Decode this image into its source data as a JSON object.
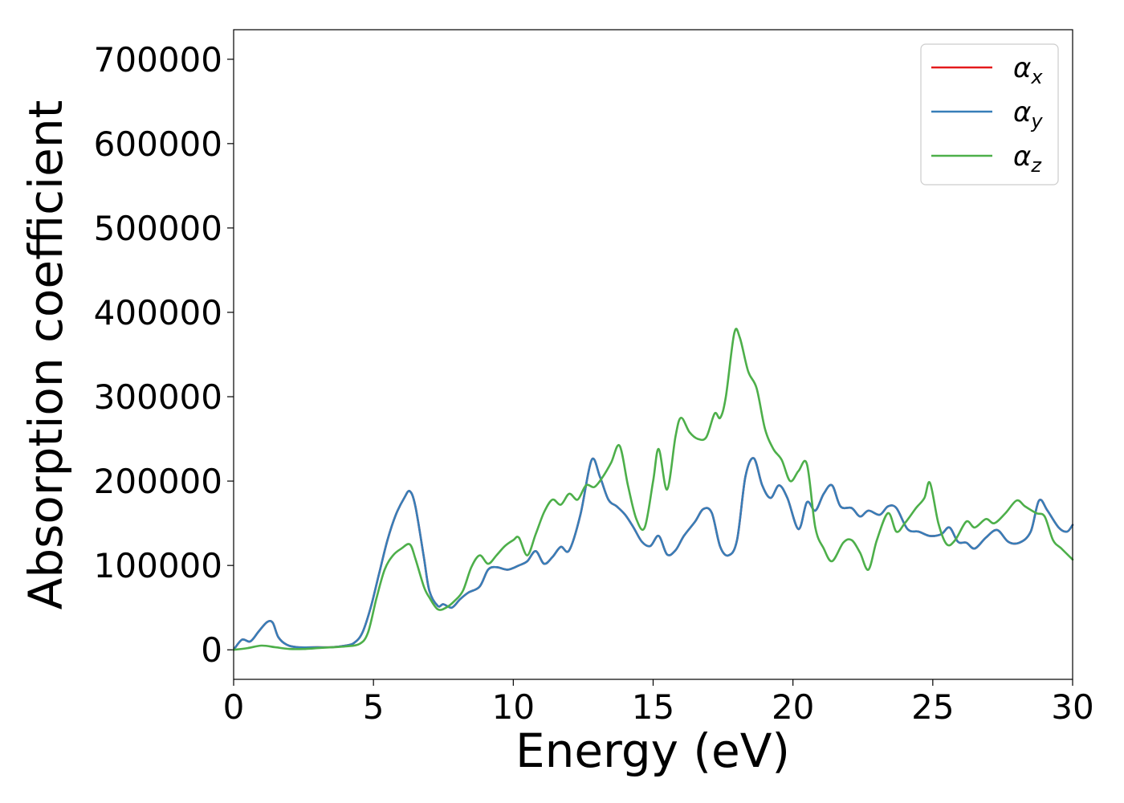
{
  "chart_data": {
    "type": "line",
    "title": "",
    "xlabel": "Energy (eV)",
    "ylabel": "Absorption coefficient",
    "xlim": [
      0,
      30
    ],
    "ylim": [
      -35000,
      735000
    ],
    "xticks": [
      0,
      5,
      10,
      15,
      20,
      25,
      30
    ],
    "yticks": [
      0,
      100000,
      200000,
      300000,
      400000,
      500000,
      600000,
      700000
    ],
    "grid": false,
    "legend_position": "top-right",
    "series": [
      {
        "name": "αx",
        "symbol": "α",
        "subscript": "x",
        "color": "#e41a1c",
        "x": [
          0,
          0.3,
          0.6,
          0.9,
          1.2,
          1.4,
          1.6,
          1.9,
          2.3,
          3,
          3.5,
          4,
          4.3,
          4.6,
          4.9,
          5.2,
          5.5,
          5.8,
          6.1,
          6.3,
          6.5,
          6.8,
          7.0,
          7.3,
          7.5,
          7.8,
          8.1,
          8.4,
          8.8,
          9.1,
          9.4,
          9.8,
          10.2,
          10.5,
          10.8,
          11.1,
          11.4,
          11.7,
          12.0,
          12.4,
          12.8,
          13.1,
          13.4,
          13.7,
          14.0,
          14.3,
          14.6,
          14.9,
          15.2,
          15.5,
          15.8,
          16.1,
          16.5,
          16.8,
          17.1,
          17.4,
          17.7,
          18.0,
          18.3,
          18.6,
          18.9,
          19.2,
          19.5,
          19.8,
          20.2,
          20.5,
          20.8,
          21.1,
          21.4,
          21.7,
          22.1,
          22.4,
          22.7,
          23.1,
          23.4,
          23.7,
          24.1,
          24.5,
          24.9,
          25.3,
          25.6,
          25.9,
          26.2,
          26.5,
          26.9,
          27.3,
          27.7,
          28.1,
          28.5,
          28.8,
          29.1,
          29.5,
          29.8,
          30
        ],
        "y": [
          0,
          12000,
          10000,
          22000,
          33000,
          32000,
          15000,
          6000,
          3000,
          3000,
          3000,
          5000,
          8000,
          20000,
          50000,
          90000,
          130000,
          160000,
          180000,
          188000,
          170000,
          110000,
          70000,
          52000,
          54000,
          50000,
          60000,
          68000,
          75000,
          95000,
          98000,
          95000,
          100000,
          105000,
          117000,
          102000,
          110000,
          122000,
          118000,
          160000,
          225000,
          205000,
          178000,
          170000,
          160000,
          145000,
          128000,
          123000,
          135000,
          113000,
          118000,
          135000,
          152000,
          167000,
          162000,
          122000,
          112000,
          130000,
          205000,
          227000,
          195000,
          180000,
          195000,
          180000,
          143000,
          175000,
          165000,
          185000,
          195000,
          170000,
          168000,
          158000,
          165000,
          160000,
          170000,
          168000,
          143000,
          140000,
          135000,
          137000,
          145000,
          128000,
          127000,
          120000,
          133000,
          142000,
          128000,
          127000,
          140000,
          177000,
          165000,
          145000,
          140000,
          148000
        ]
      },
      {
        "name": "αy",
        "symbol": "α",
        "subscript": "y",
        "color": "#377eb8",
        "x": [
          0,
          0.3,
          0.6,
          0.9,
          1.2,
          1.4,
          1.6,
          1.9,
          2.3,
          3,
          3.5,
          4,
          4.3,
          4.6,
          4.9,
          5.2,
          5.5,
          5.8,
          6.1,
          6.3,
          6.5,
          6.8,
          7.0,
          7.3,
          7.5,
          7.8,
          8.1,
          8.4,
          8.8,
          9.1,
          9.4,
          9.8,
          10.2,
          10.5,
          10.8,
          11.1,
          11.4,
          11.7,
          12.0,
          12.4,
          12.8,
          13.1,
          13.4,
          13.7,
          14.0,
          14.3,
          14.6,
          14.9,
          15.2,
          15.5,
          15.8,
          16.1,
          16.5,
          16.8,
          17.1,
          17.4,
          17.7,
          18.0,
          18.3,
          18.6,
          18.9,
          19.2,
          19.5,
          19.8,
          20.2,
          20.5,
          20.8,
          21.1,
          21.4,
          21.7,
          22.1,
          22.4,
          22.7,
          23.1,
          23.4,
          23.7,
          24.1,
          24.5,
          24.9,
          25.3,
          25.6,
          25.9,
          26.2,
          26.5,
          26.9,
          27.3,
          27.7,
          28.1,
          28.5,
          28.8,
          29.1,
          29.5,
          29.8,
          30
        ],
        "y": [
          0,
          12000,
          10000,
          22000,
          33000,
          32000,
          15000,
          6000,
          3000,
          3000,
          3000,
          5000,
          8000,
          20000,
          50000,
          90000,
          130000,
          160000,
          180000,
          188000,
          170000,
          110000,
          70000,
          52000,
          54000,
          50000,
          60000,
          68000,
          75000,
          95000,
          98000,
          95000,
          100000,
          105000,
          117000,
          102000,
          110000,
          122000,
          118000,
          160000,
          225000,
          205000,
          178000,
          170000,
          160000,
          145000,
          128000,
          123000,
          135000,
          113000,
          118000,
          135000,
          152000,
          167000,
          162000,
          122000,
          112000,
          130000,
          205000,
          227000,
          195000,
          180000,
          195000,
          180000,
          143000,
          175000,
          165000,
          185000,
          195000,
          170000,
          168000,
          158000,
          165000,
          160000,
          170000,
          168000,
          143000,
          140000,
          135000,
          137000,
          145000,
          128000,
          127000,
          120000,
          133000,
          142000,
          128000,
          127000,
          140000,
          177000,
          165000,
          145000,
          140000,
          148000
        ]
      },
      {
        "name": "αz",
        "symbol": "α",
        "subscript": "z",
        "color": "#4daf4a",
        "x": [
          0,
          0.5,
          1.0,
          1.5,
          2.0,
          2.5,
          3.0,
          3.5,
          4.0,
          4.5,
          4.8,
          5.1,
          5.4,
          5.7,
          6.0,
          6.3,
          6.5,
          6.8,
          7.0,
          7.3,
          7.6,
          7.9,
          8.2,
          8.5,
          8.8,
          9.1,
          9.4,
          9.7,
          10.0,
          10.2,
          10.5,
          10.8,
          11.1,
          11.4,
          11.7,
          12.0,
          12.3,
          12.6,
          12.9,
          13.2,
          13.5,
          13.8,
          14.1,
          14.4,
          14.7,
          15.0,
          15.2,
          15.5,
          15.8,
          16.0,
          16.3,
          16.6,
          16.9,
          17.2,
          17.4,
          17.6,
          17.9,
          18.1,
          18.4,
          18.7,
          19.0,
          19.3,
          19.6,
          19.9,
          20.2,
          20.5,
          20.8,
          21.1,
          21.4,
          21.8,
          22.1,
          22.4,
          22.7,
          23.0,
          23.4,
          23.7,
          24.0,
          24.4,
          24.7,
          24.9,
          25.2,
          25.5,
          25.8,
          26.2,
          26.5,
          26.9,
          27.2,
          27.6,
          28.0,
          28.3,
          28.7,
          29.0,
          29.3,
          29.6,
          30
        ],
        "y": [
          0,
          2000,
          5000,
          3000,
          1000,
          1000,
          2000,
          3000,
          4000,
          7000,
          20000,
          60000,
          95000,
          112000,
          120000,
          125000,
          108000,
          75000,
          62000,
          48000,
          50000,
          58000,
          70000,
          98000,
          112000,
          102000,
          112000,
          123000,
          130000,
          133000,
          112000,
          137000,
          163000,
          178000,
          172000,
          185000,
          178000,
          195000,
          193000,
          205000,
          222000,
          242000,
          195000,
          155000,
          145000,
          200000,
          238000,
          190000,
          253000,
          275000,
          258000,
          250000,
          252000,
          280000,
          275000,
          300000,
          375000,
          370000,
          330000,
          310000,
          262000,
          238000,
          225000,
          200000,
          212000,
          220000,
          145000,
          120000,
          105000,
          127000,
          130000,
          115000,
          95000,
          130000,
          162000,
          140000,
          150000,
          168000,
          180000,
          198000,
          150000,
          125000,
          130000,
          152000,
          145000,
          155000,
          150000,
          162000,
          177000,
          170000,
          162000,
          158000,
          130000,
          120000,
          107000
        ]
      }
    ]
  }
}
